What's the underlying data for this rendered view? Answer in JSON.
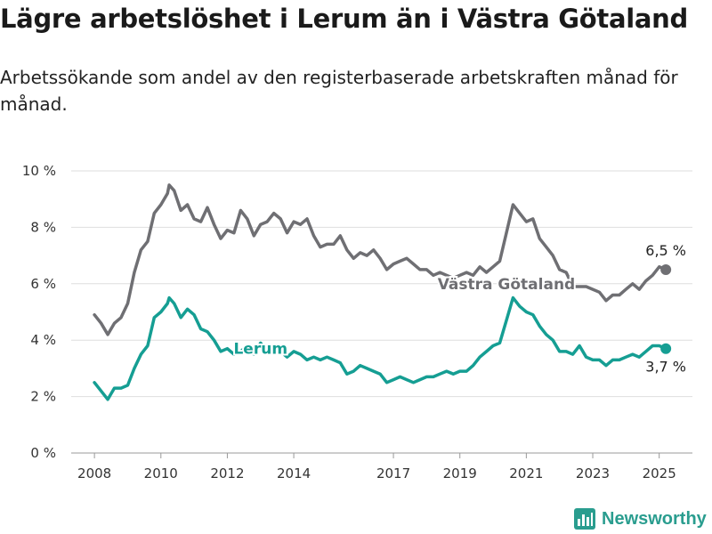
{
  "header": {
    "title": "Lägre arbetslöshet i Lerum än i Västra Götaland",
    "subtitle": "Arbetssökande som andel av den registerbaserade arbetskraften månad för månad."
  },
  "brand": {
    "name": "Newsworthy",
    "icon": "bar-chart-logo-icon",
    "color": "#2a9d8f"
  },
  "chart_data": {
    "type": "line",
    "x_ticks": [
      "2008",
      "2010",
      "2012",
      "2014",
      "2017",
      "2019",
      "2021",
      "2023",
      "2025"
    ],
    "y_ticks": [
      "0 %",
      "2 %",
      "4 %",
      "6 %",
      "8 %",
      "10 %"
    ],
    "ylim": [
      0,
      10
    ],
    "xlim": [
      2007.3,
      2026.0
    ],
    "grid": "horizontal",
    "series": [
      {
        "name": "Västra Götaland",
        "color": "#6f6f73",
        "end_label": "6,5 %",
        "points": [
          [
            2008.0,
            4.9
          ],
          [
            2008.2,
            4.6
          ],
          [
            2008.4,
            4.2
          ],
          [
            2008.6,
            4.6
          ],
          [
            2008.8,
            4.8
          ],
          [
            2009.0,
            5.3
          ],
          [
            2009.2,
            6.4
          ],
          [
            2009.4,
            7.2
          ],
          [
            2009.6,
            7.5
          ],
          [
            2009.8,
            8.5
          ],
          [
            2010.0,
            8.8
          ],
          [
            2010.2,
            9.2
          ],
          [
            2010.25,
            9.5
          ],
          [
            2010.4,
            9.3
          ],
          [
            2010.6,
            8.6
          ],
          [
            2010.8,
            8.8
          ],
          [
            2011.0,
            8.3
          ],
          [
            2011.2,
            8.2
          ],
          [
            2011.4,
            8.7
          ],
          [
            2011.6,
            8.1
          ],
          [
            2011.8,
            7.6
          ],
          [
            2012.0,
            7.9
          ],
          [
            2012.2,
            7.8
          ],
          [
            2012.4,
            8.6
          ],
          [
            2012.6,
            8.3
          ],
          [
            2012.8,
            7.7
          ],
          [
            2013.0,
            8.1
          ],
          [
            2013.2,
            8.2
          ],
          [
            2013.4,
            8.5
          ],
          [
            2013.6,
            8.3
          ],
          [
            2013.8,
            7.8
          ],
          [
            2014.0,
            8.2
          ],
          [
            2014.2,
            8.1
          ],
          [
            2014.4,
            8.3
          ],
          [
            2014.6,
            7.7
          ],
          [
            2014.8,
            7.3
          ],
          [
            2015.0,
            7.4
          ],
          [
            2015.2,
            7.4
          ],
          [
            2015.4,
            7.7
          ],
          [
            2015.6,
            7.2
          ],
          [
            2015.8,
            6.9
          ],
          [
            2016.0,
            7.1
          ],
          [
            2016.2,
            7.0
          ],
          [
            2016.4,
            7.2
          ],
          [
            2016.6,
            6.9
          ],
          [
            2016.8,
            6.5
          ],
          [
            2017.0,
            6.7
          ],
          [
            2017.2,
            6.8
          ],
          [
            2017.4,
            6.9
          ],
          [
            2017.6,
            6.7
          ],
          [
            2017.8,
            6.5
          ],
          [
            2018.0,
            6.5
          ],
          [
            2018.2,
            6.3
          ],
          [
            2018.4,
            6.4
          ],
          [
            2018.6,
            6.3
          ],
          [
            2018.8,
            6.2
          ],
          [
            2019.0,
            6.3
          ],
          [
            2019.2,
            6.4
          ],
          [
            2019.4,
            6.3
          ],
          [
            2019.6,
            6.6
          ],
          [
            2019.8,
            6.4
          ],
          [
            2020.0,
            6.6
          ],
          [
            2020.2,
            6.8
          ],
          [
            2020.4,
            7.8
          ],
          [
            2020.6,
            8.8
          ],
          [
            2020.8,
            8.5
          ],
          [
            2021.0,
            8.2
          ],
          [
            2021.2,
            8.3
          ],
          [
            2021.4,
            7.6
          ],
          [
            2021.6,
            7.3
          ],
          [
            2021.8,
            7.0
          ],
          [
            2022.0,
            6.5
          ],
          [
            2022.2,
            6.4
          ],
          [
            2022.4,
            5.9
          ],
          [
            2022.6,
            5.9
          ],
          [
            2022.8,
            5.9
          ],
          [
            2023.0,
            5.8
          ],
          [
            2023.2,
            5.7
          ],
          [
            2023.4,
            5.4
          ],
          [
            2023.6,
            5.6
          ],
          [
            2023.8,
            5.6
          ],
          [
            2024.0,
            5.8
          ],
          [
            2024.2,
            6.0
          ],
          [
            2024.4,
            5.8
          ],
          [
            2024.6,
            6.1
          ],
          [
            2024.8,
            6.3
          ],
          [
            2025.0,
            6.6
          ],
          [
            2025.2,
            6.5
          ]
        ]
      },
      {
        "name": "Lerum",
        "color": "#159e93",
        "end_label": "3,7 %",
        "points": [
          [
            2008.0,
            2.5
          ],
          [
            2008.2,
            2.2
          ],
          [
            2008.4,
            1.9
          ],
          [
            2008.6,
            2.3
          ],
          [
            2008.8,
            2.3
          ],
          [
            2009.0,
            2.4
          ],
          [
            2009.2,
            3.0
          ],
          [
            2009.4,
            3.5
          ],
          [
            2009.6,
            3.8
          ],
          [
            2009.8,
            4.8
          ],
          [
            2010.0,
            5.0
          ],
          [
            2010.2,
            5.3
          ],
          [
            2010.25,
            5.5
          ],
          [
            2010.4,
            5.3
          ],
          [
            2010.6,
            4.8
          ],
          [
            2010.8,
            5.1
          ],
          [
            2011.0,
            4.9
          ],
          [
            2011.2,
            4.4
          ],
          [
            2011.4,
            4.3
          ],
          [
            2011.6,
            4.0
          ],
          [
            2011.8,
            3.6
          ],
          [
            2012.0,
            3.7
          ],
          [
            2012.2,
            3.5
          ],
          [
            2012.4,
            3.6
          ],
          [
            2012.6,
            3.8
          ],
          [
            2012.8,
            3.5
          ],
          [
            2013.0,
            3.9
          ],
          [
            2013.2,
            3.6
          ],
          [
            2013.4,
            3.8
          ],
          [
            2013.6,
            3.6
          ],
          [
            2013.8,
            3.4
          ],
          [
            2014.0,
            3.6
          ],
          [
            2014.2,
            3.5
          ],
          [
            2014.4,
            3.3
          ],
          [
            2014.6,
            3.4
          ],
          [
            2014.8,
            3.3
          ],
          [
            2015.0,
            3.4
          ],
          [
            2015.2,
            3.3
          ],
          [
            2015.4,
            3.2
          ],
          [
            2015.6,
            2.8
          ],
          [
            2015.8,
            2.9
          ],
          [
            2016.0,
            3.1
          ],
          [
            2016.2,
            3.0
          ],
          [
            2016.4,
            2.9
          ],
          [
            2016.6,
            2.8
          ],
          [
            2016.8,
            2.5
          ],
          [
            2017.0,
            2.6
          ],
          [
            2017.2,
            2.7
          ],
          [
            2017.4,
            2.6
          ],
          [
            2017.6,
            2.5
          ],
          [
            2017.8,
            2.6
          ],
          [
            2018.0,
            2.7
          ],
          [
            2018.2,
            2.7
          ],
          [
            2018.4,
            2.8
          ],
          [
            2018.6,
            2.9
          ],
          [
            2018.8,
            2.8
          ],
          [
            2019.0,
            2.9
          ],
          [
            2019.2,
            2.9
          ],
          [
            2019.4,
            3.1
          ],
          [
            2019.6,
            3.4
          ],
          [
            2019.8,
            3.6
          ],
          [
            2020.0,
            3.8
          ],
          [
            2020.2,
            3.9
          ],
          [
            2020.4,
            4.7
          ],
          [
            2020.6,
            5.5
          ],
          [
            2020.8,
            5.2
          ],
          [
            2021.0,
            5.0
          ],
          [
            2021.2,
            4.9
          ],
          [
            2021.4,
            4.5
          ],
          [
            2021.6,
            4.2
          ],
          [
            2021.8,
            4.0
          ],
          [
            2022.0,
            3.6
          ],
          [
            2022.2,
            3.6
          ],
          [
            2022.4,
            3.5
          ],
          [
            2022.6,
            3.8
          ],
          [
            2022.8,
            3.4
          ],
          [
            2023.0,
            3.3
          ],
          [
            2023.2,
            3.3
          ],
          [
            2023.4,
            3.1
          ],
          [
            2023.6,
            3.3
          ],
          [
            2023.8,
            3.3
          ],
          [
            2024.0,
            3.4
          ],
          [
            2024.2,
            3.5
          ],
          [
            2024.4,
            3.4
          ],
          [
            2024.6,
            3.6
          ],
          [
            2024.8,
            3.8
          ],
          [
            2025.0,
            3.8
          ],
          [
            2025.2,
            3.7
          ]
        ]
      }
    ],
    "series_labels": [
      {
        "series": "Västra Götaland",
        "text": "Västra Götaland",
        "x": 2020.4,
        "y": 6.0
      },
      {
        "series": "Lerum",
        "text": "Lerum",
        "x": 2013.0,
        "y": 3.7
      }
    ]
  }
}
